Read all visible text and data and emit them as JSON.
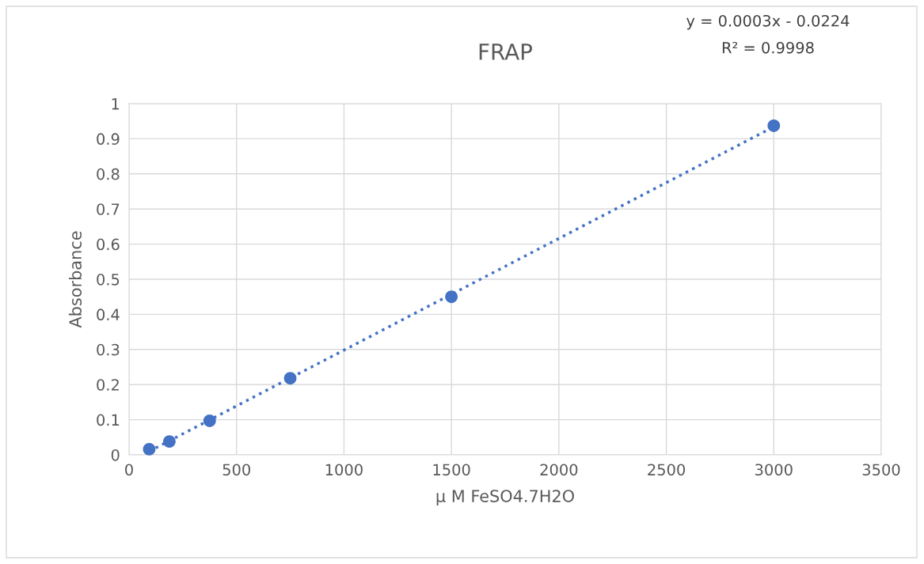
{
  "chart_data": {
    "type": "scatter",
    "title": "FRAP",
    "xlabel": "µ M FeSO4.7H2O",
    "ylabel": "Absorbance",
    "annotations": [
      "y = 0.0003x - 0.0224",
      "R² = 0.9998"
    ],
    "series": [
      {
        "color": "#4472c4",
        "marker": "circle",
        "x": [
          93.75,
          187.5,
          375,
          750,
          1500,
          3000
        ],
        "values": [
          0.016,
          0.038,
          0.097,
          0.218,
          0.45,
          0.937
        ]
      },
      {
        "type": "line",
        "color": "#4472c4",
        "marker": "none",
        "line_style": "dotted",
        "x": [
          93.75,
          3000
        ],
        "values": [
          0.01,
          0.934
        ]
      }
    ],
    "xlim": [
      0,
      3500
    ],
    "xticks": [
      0,
      500,
      1000,
      1500,
      2000,
      2500,
      3000,
      3500
    ],
    "ylim": [
      0,
      1
    ],
    "yticks": [
      0,
      0.1,
      0.2,
      0.3,
      0.4,
      0.5,
      0.6,
      0.7,
      0.8,
      0.9,
      1
    ],
    "grid": true,
    "legend": false
  }
}
